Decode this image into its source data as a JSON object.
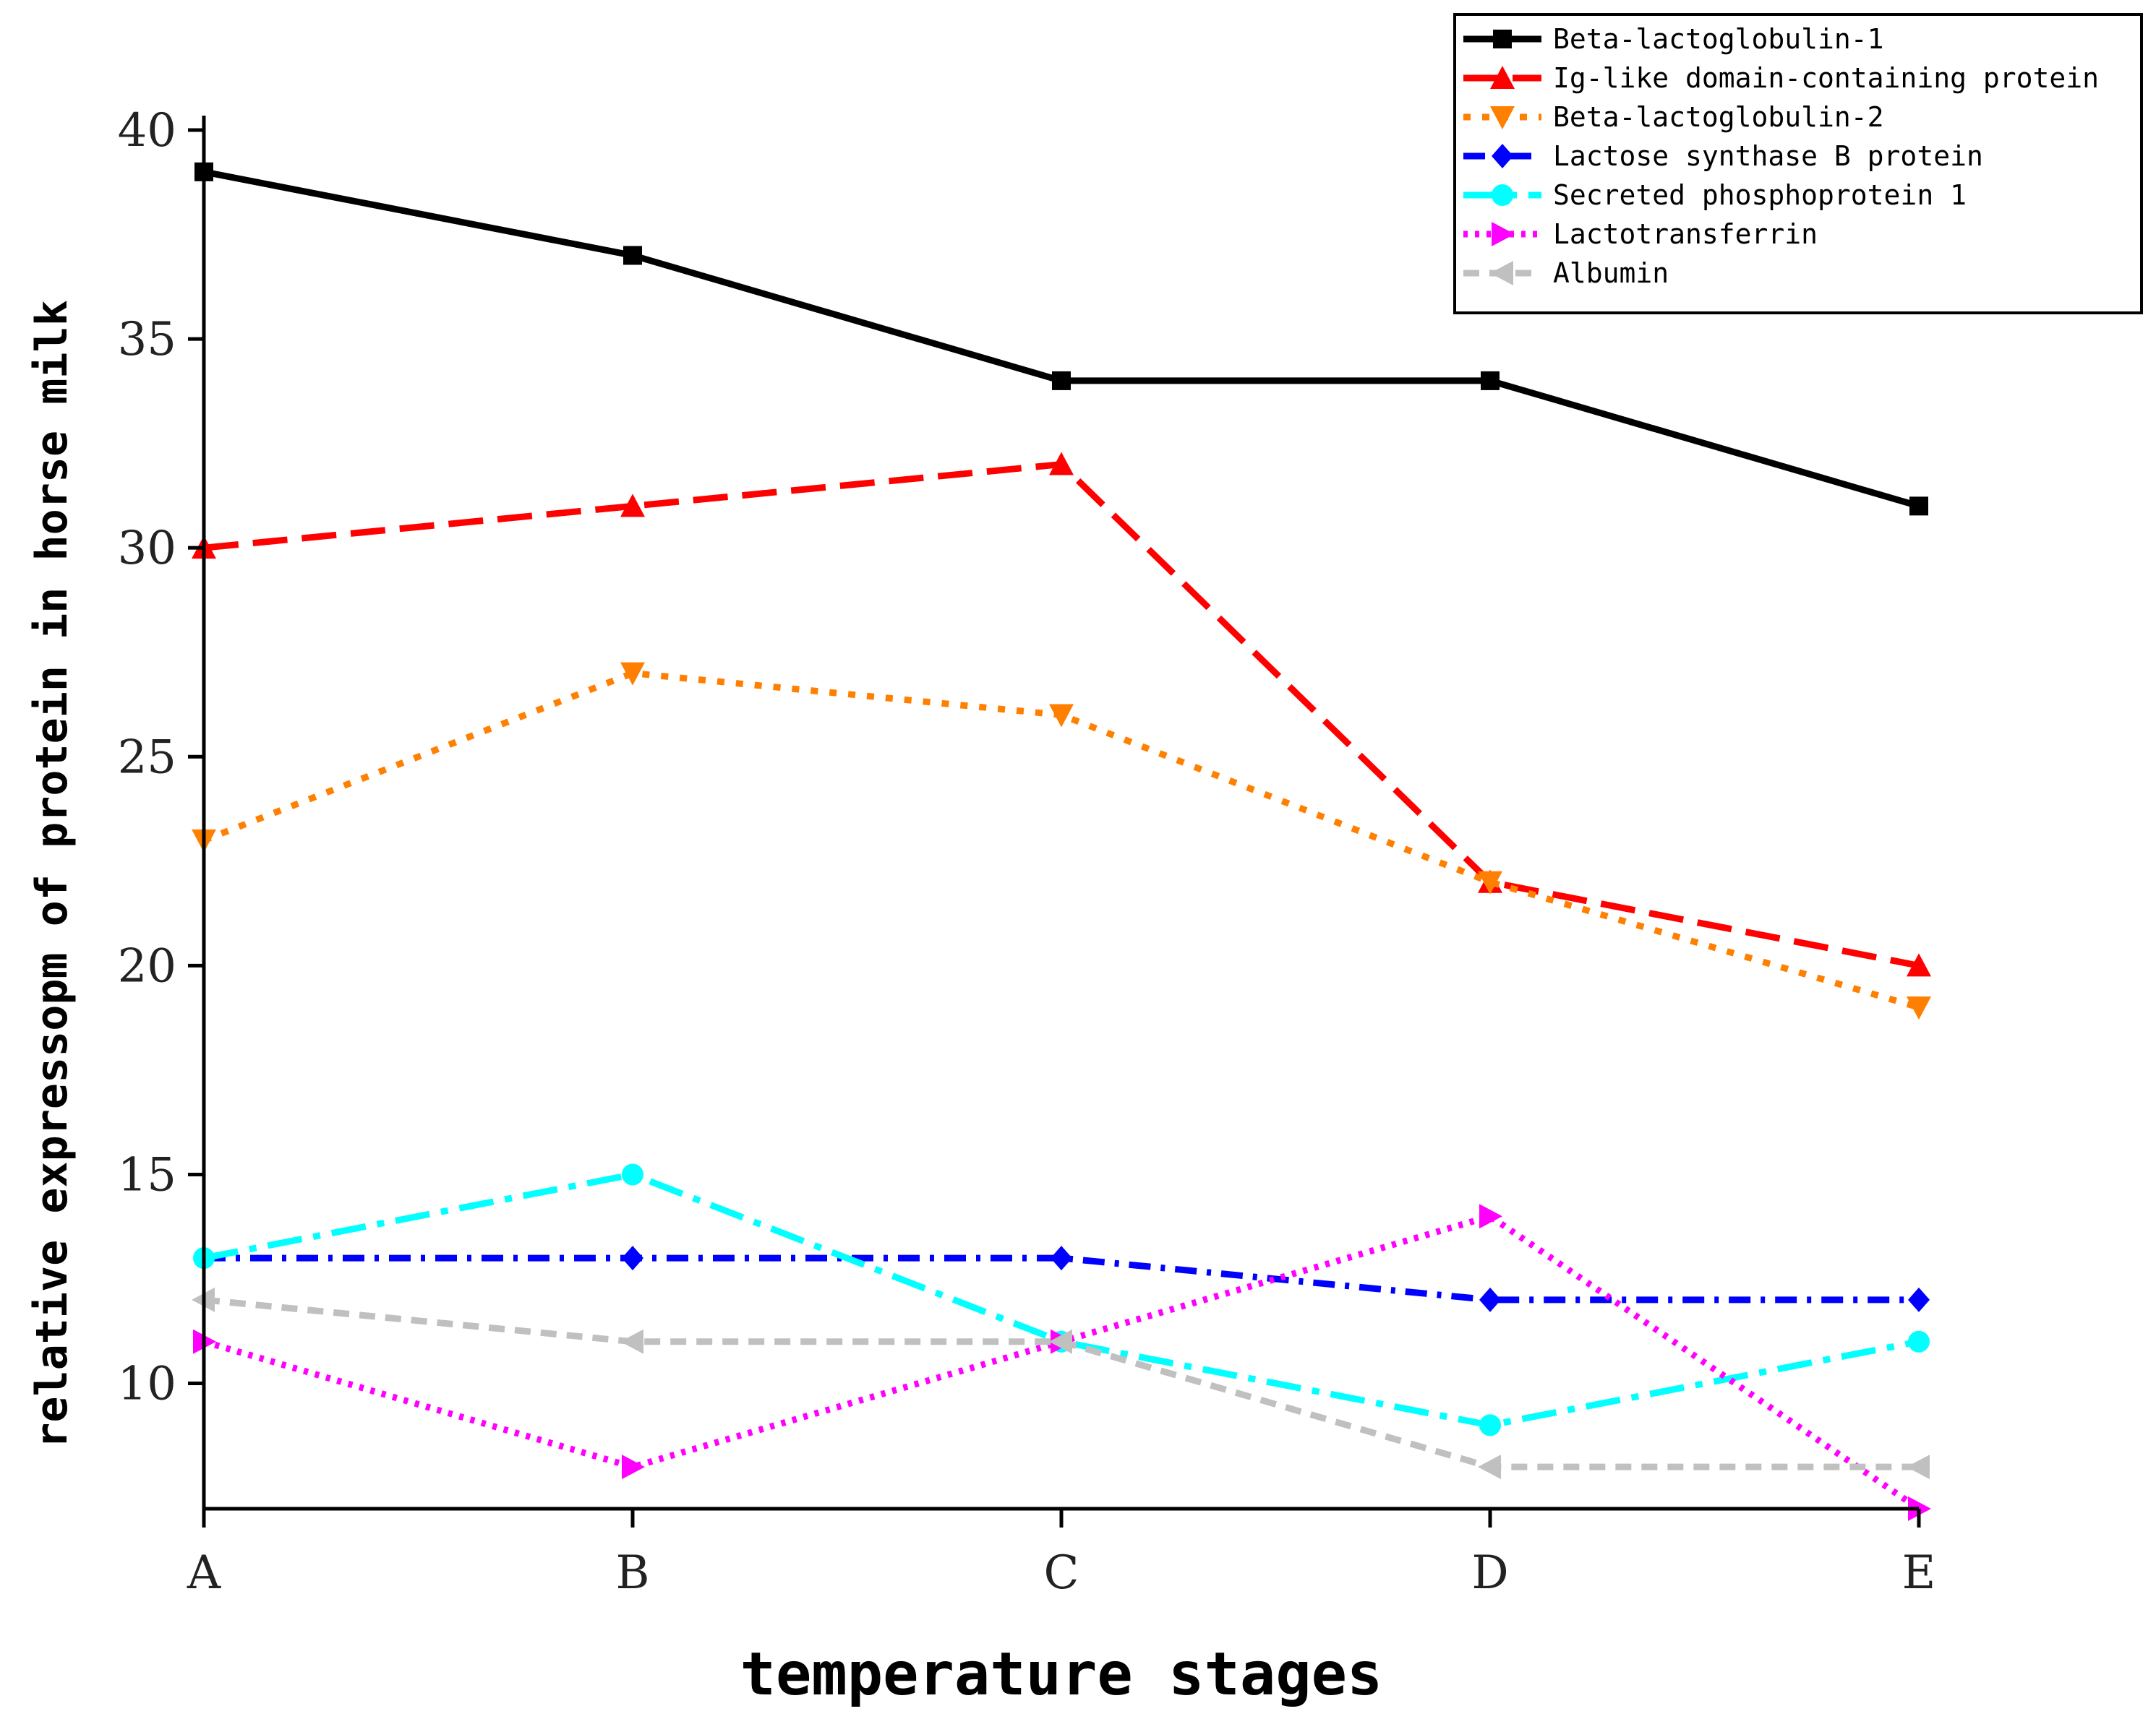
{
  "chart_data": {
    "type": "line",
    "title": "",
    "xlabel": "temperature stages",
    "ylabel": "relative expressopm of protein in horse milk",
    "categories": [
      "A",
      "B",
      "C",
      "D",
      "E"
    ],
    "ylim": [
      7,
      40
    ],
    "yticks": [
      10,
      15,
      20,
      25,
      30,
      35,
      40
    ],
    "legend_position": "top-right",
    "series": [
      {
        "name": "Beta-lactoglobulin-1",
        "values": [
          39,
          37,
          34,
          34,
          31
        ],
        "color": "#000000",
        "marker": "square",
        "dash": "solid"
      },
      {
        "name": "Ig-like domain-containing protein",
        "values": [
          30,
          31,
          32,
          22,
          20
        ],
        "color": "#ff0000",
        "marker": "triangle-up",
        "dash": "dash"
      },
      {
        "name": "Beta-lactoglobulin-2",
        "values": [
          23,
          27,
          26,
          22,
          19
        ],
        "color": "#ff8000",
        "marker": "triangle-down",
        "dash": "dot"
      },
      {
        "name": "Lactose synthase B protein",
        "values": [
          13,
          13,
          13,
          12,
          12
        ],
        "color": "#0000ff",
        "marker": "diamond",
        "dash": "dashdot"
      },
      {
        "name": "Secreted phosphoprotein 1",
        "values": [
          13,
          15,
          11,
          9,
          11
        ],
        "color": "#00ffff",
        "marker": "circle",
        "dash": "longdashdot"
      },
      {
        "name": "Lactotransferrin",
        "values": [
          11,
          8,
          11,
          14,
          7
        ],
        "color": "#ff00ff",
        "marker": "triangle-right",
        "dash": "fine-dot"
      },
      {
        "name": "Albumin",
        "values": [
          12,
          11,
          11,
          8,
          8
        ],
        "color": "#c0c0c0",
        "marker": "triangle-left",
        "dash": "short-dash"
      }
    ]
  }
}
